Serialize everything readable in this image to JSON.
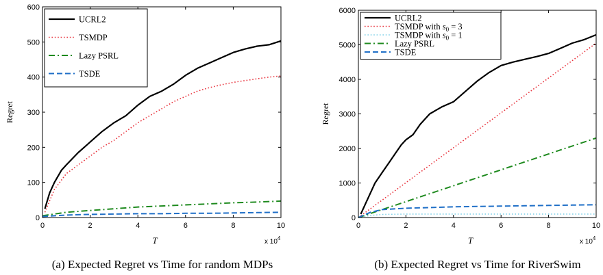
{
  "chart_data": [
    {
      "type": "line",
      "caption": "(a) Expected Regret vs Time for random MDPs",
      "xlabel": "T",
      "ylabel": "Regret",
      "x_multiplier": "x 10",
      "x_multiplier_exp": "4",
      "xlim": [
        0,
        10
      ],
      "ylim": [
        0,
        600
      ],
      "xticks": [
        "0",
        "2",
        "4",
        "6",
        "8",
        "10"
      ],
      "yticks": [
        "0",
        "100",
        "200",
        "300",
        "400",
        "500",
        "600"
      ],
      "legend_position": "top-left",
      "series": [
        {
          "name": "UCRL2",
          "color": "#000000",
          "style": "solid",
          "x": [
            0.1,
            0.3,
            0.5,
            0.8,
            1.0,
            1.5,
            2.0,
            2.5,
            3.0,
            3.5,
            4.0,
            4.5,
            5.0,
            5.5,
            6.0,
            6.5,
            7.0,
            7.5,
            8.0,
            8.5,
            9.0,
            9.5,
            10.0
          ],
          "y": [
            25,
            70,
            100,
            135,
            150,
            185,
            215,
            245,
            270,
            290,
            320,
            345,
            360,
            380,
            405,
            425,
            440,
            455,
            470,
            480,
            488,
            492,
            503
          ]
        },
        {
          "name": "TSMDP",
          "color": "#e8323c",
          "style": "dotted",
          "x": [
            0.1,
            0.5,
            1.0,
            1.5,
            2.0,
            2.5,
            3.0,
            3.5,
            4.0,
            4.5,
            5.0,
            5.5,
            6.0,
            6.5,
            7.0,
            7.5,
            8.0,
            8.5,
            9.0,
            9.5,
            10.0
          ],
          "y": [
            15,
            80,
            125,
            150,
            175,
            200,
            220,
            245,
            270,
            290,
            310,
            330,
            345,
            360,
            370,
            378,
            385,
            390,
            395,
            400,
            403
          ]
        },
        {
          "name": "Lazy PSRL",
          "color": "#1e8a1e",
          "style": "dashdot",
          "x": [
            0,
            1,
            2,
            3,
            4,
            5,
            6,
            7,
            8,
            9,
            10
          ],
          "y": [
            5,
            15,
            20,
            25,
            30,
            33,
            36,
            39,
            42,
            44,
            47
          ]
        },
        {
          "name": "TSDE",
          "color": "#1f6fc7",
          "style": "dashed",
          "x": [
            0,
            1,
            2,
            3,
            4,
            5,
            6,
            7,
            8,
            9,
            10
          ],
          "y": [
            3,
            7,
            9,
            10,
            11,
            11,
            12,
            12,
            13,
            14,
            15
          ]
        }
      ]
    },
    {
      "type": "line",
      "caption": "(b) Expected Regret vs Time for RiverSwim",
      "xlabel": "T",
      "ylabel": "Regret",
      "x_multiplier": "x 10",
      "x_multiplier_exp": "4",
      "xlim": [
        0,
        10
      ],
      "ylim": [
        0,
        6000
      ],
      "xticks": [
        "0",
        "2",
        "4",
        "6",
        "8",
        "10"
      ],
      "yticks": [
        "0",
        "1000",
        "2000",
        "3000",
        "4000",
        "5000",
        "6000"
      ],
      "legend_position": "top-left",
      "series": [
        {
          "name": "UCRL2",
          "color": "#000000",
          "style": "solid",
          "x": [
            0.1,
            0.3,
            0.5,
            0.7,
            1.0,
            1.3,
            1.5,
            1.8,
            2.0,
            2.3,
            2.6,
            3.0,
            3.5,
            4.0,
            4.5,
            5.0,
            5.5,
            6.0,
            6.5,
            7.0,
            7.5,
            8.0,
            8.5,
            9.0,
            9.5,
            10.0
          ],
          "y": [
            100,
            400,
            700,
            1000,
            1300,
            1600,
            1800,
            2100,
            2250,
            2400,
            2700,
            3000,
            3200,
            3350,
            3650,
            3950,
            4200,
            4400,
            4500,
            4580,
            4660,
            4750,
            4900,
            5050,
            5150,
            5290
          ]
        },
        {
          "name": "TSMDP with s_0 = 3",
          "color": "#e8323c",
          "style": "dotted",
          "x": [
            0,
            10
          ],
          "y": [
            0,
            5050
          ]
        },
        {
          "name": "TSMDP with s_0 = 1",
          "color": "#7fd0e8",
          "style": "dotted",
          "x": [
            0,
            0.5,
            1,
            2,
            4,
            6,
            8,
            10
          ],
          "y": [
            0,
            60,
            90,
            100,
            100,
            100,
            100,
            100
          ]
        },
        {
          "name": "Lazy PSRL",
          "color": "#1e8a1e",
          "style": "dashdot",
          "x": [
            0,
            10
          ],
          "y": [
            0,
            2300
          ]
        },
        {
          "name": "TSDE",
          "color": "#1f6fc7",
          "style": "dashed",
          "x": [
            0,
            0.5,
            1,
            2,
            3,
            4,
            5,
            6,
            7,
            8,
            9,
            10
          ],
          "y": [
            0,
            150,
            230,
            270,
            290,
            310,
            320,
            330,
            340,
            350,
            360,
            370
          ]
        }
      ]
    }
  ]
}
